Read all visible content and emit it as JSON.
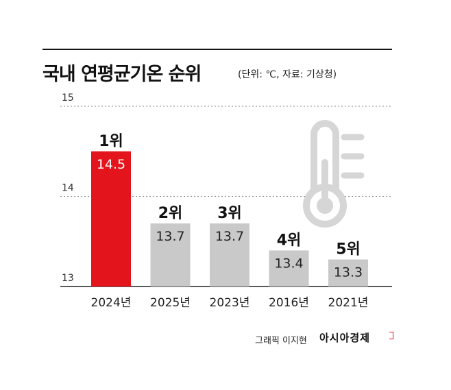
{
  "header": {
    "title": "국내 연평균기온 순위",
    "note": "(단위: ℃, 자료: 기상청)"
  },
  "footer": {
    "credit": "그래픽 이지현",
    "brand": "아시아경제"
  },
  "colors": {
    "highlight": "#e3141c",
    "bar": "#c9c9c9",
    "icon": "#d6d6d6"
  },
  "icon": "thermometer-icon",
  "chart_data": {
    "type": "bar",
    "categories": [
      "2024년",
      "2025년",
      "2023년",
      "2016년",
      "2021년"
    ],
    "values": [
      14.5,
      13.7,
      13.7,
      13.4,
      13.3
    ],
    "ranks": [
      "1위",
      "2위",
      "3위",
      "4위",
      "5위"
    ],
    "highlight_index": 0,
    "ylim": [
      13,
      15
    ],
    "yticks": [
      13,
      14,
      15
    ],
    "grid": "dotted at 14 and 15",
    "unit": "℃"
  }
}
